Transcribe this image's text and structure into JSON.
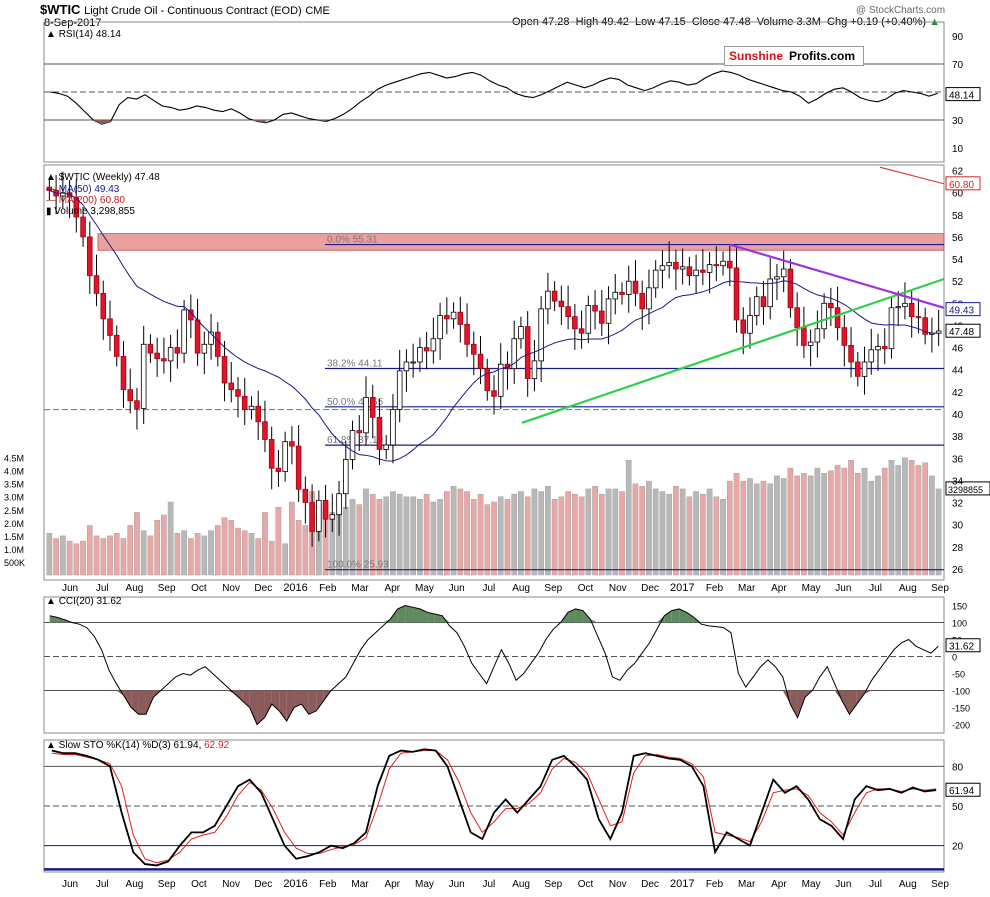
{
  "header": {
    "symbol": "$WTIC",
    "name": "Light Crude Oil - Continuous Contract (EOD)",
    "exchange": "CME",
    "date": "8-Sep-2017",
    "open": "Open 47.28",
    "high": "High 49.42",
    "low": "Low 47.15",
    "close": "Close 47.48",
    "volume": "Volume 3.3M",
    "chg": "Chg +0.19 (+0.40%)",
    "watermark": "@ StockCharts.com"
  },
  "logo": {
    "part1": "Sunshine",
    "part2": "Profits.com",
    "part1_color": "#d4141a"
  },
  "colors": {
    "rsi_fill": "#8b5a5a",
    "cci_pos_fill": "#5e8a5e",
    "cci_neg_fill": "#8b5a5a",
    "up_candle": "#ffffff",
    "down_candle": "#e0142a",
    "resistance_zone": "#e89090",
    "ma50": "#1a1a8c",
    "ma200": "#e02020",
    "green_trend": "#2bd14a",
    "purple_trend": "#a030e0",
    "fib_line": "#1a1a8c",
    "support_dash": "#2a9a6a",
    "vol_up": "#b8b8b8",
    "vol_down": "#e8a8a8",
    "sto_k": "#000000",
    "sto_d": "#e02020"
  },
  "chart_data": [
    {
      "type": "line",
      "panel": "rsi",
      "title": "RSI(14) 48.14",
      "last_value": "48.14",
      "y_ticks": [
        "90",
        "70",
        "50",
        "30",
        "10"
      ],
      "levels": [
        70,
        50,
        30
      ],
      "ylim": [
        0,
        100
      ],
      "values": [
        50,
        49,
        47,
        42,
        36,
        30,
        27,
        29,
        41,
        46,
        45,
        48,
        44,
        40,
        39,
        37,
        38,
        40,
        39,
        37,
        36,
        38,
        35,
        31,
        29,
        28,
        30,
        34,
        35,
        33,
        31,
        30,
        29,
        31,
        34,
        38,
        43,
        47,
        52,
        55,
        57,
        59,
        61,
        63,
        64,
        62,
        60,
        61,
        63,
        64,
        62,
        58,
        55,
        53,
        49,
        47,
        46,
        48,
        51,
        54,
        57,
        55,
        53,
        55,
        58,
        60,
        59,
        55,
        53,
        51,
        53,
        56,
        58,
        57,
        55,
        56,
        60,
        63,
        65,
        64,
        62,
        59,
        57,
        55,
        53,
        51,
        50,
        47,
        42,
        45,
        49,
        52,
        53,
        50,
        46,
        44,
        43,
        45,
        49,
        51,
        50,
        49,
        47,
        49
      ]
    },
    {
      "type": "candlestick",
      "panel": "price",
      "title": "$WTIC (Weekly) 47.48",
      "legend": [
        "MA(50) 49.43",
        "MA(200) 60.80",
        "Volume 3,298,855"
      ],
      "y_ticks": [
        "62",
        "60",
        "58",
        "56",
        "54",
        "52",
        "50",
        "48",
        "46",
        "44",
        "42",
        "40",
        "38",
        "36",
        "34",
        "32",
        "30",
        "28",
        "26"
      ],
      "ylim": [
        25,
        62.5
      ],
      "x_ticks": [
        "Jun",
        "Jul",
        "Aug",
        "Sep",
        "Oct",
        "Nov",
        "Dec",
        "2016",
        "Feb",
        "Mar",
        "Apr",
        "May",
        "Jun",
        "Jul",
        "Aug",
        "Sep",
        "Oct",
        "Nov",
        "Dec",
        "2017",
        "Feb",
        "Mar",
        "Apr",
        "May",
        "Jun",
        "Jul",
        "Aug",
        "Sep"
      ],
      "fib_labels": [
        "0.0% 55.31",
        "38.2% 44.11",
        "50.0% 40.65",
        "61.8% 37.19",
        "100.0% 25.93"
      ],
      "fib_levels": [
        55.31,
        44.11,
        40.65,
        37.19,
        25.93
      ],
      "support_level": 40.4,
      "resistance_zone": [
        54.8,
        56.3
      ],
      "ma50_last": "49.43",
      "ma200_last": "60.80",
      "close_last": "47.48",
      "closes": [
        60.2,
        59.7,
        60.0,
        59.6,
        57.8,
        56.0,
        52.5,
        50.9,
        48.6,
        47.1,
        45.2,
        42.2,
        41.2,
        40.5,
        46.3,
        45.5,
        45.0,
        44.8,
        46.0,
        45.5,
        49.4,
        48.5,
        45.5,
        46.3,
        47.4,
        45.2,
        42.8,
        42.2,
        41.6,
        40.4,
        40.7,
        39.3,
        37.7,
        35.1,
        34.8,
        37.5,
        37.1,
        33.2,
        32.0,
        29.4,
        32.2,
        30.5,
        30.9,
        32.8,
        35.9,
        38.5,
        38.3,
        41.5,
        39.7,
        36.8,
        37.2,
        40.4,
        43.9,
        44.7,
        44.7,
        46.0,
        45.7,
        46.8,
        48.9,
        48.6,
        49.2,
        48.1,
        46.3,
        45.4,
        44.1,
        42.1,
        41.6,
        44.5,
        44.1,
        46.8,
        47.9,
        43.2,
        44.8,
        49.5,
        51.1,
        50.2,
        49.7,
        48.8,
        47.7,
        47.3,
        49.8,
        49.3,
        48.2,
        50.4,
        51.0,
        50.8,
        52.0,
        50.9,
        49.5,
        51.4,
        53.0,
        53.4,
        53.7,
        53.1,
        53.3,
        52.5,
        53.0,
        52.8,
        53.5,
        53.4,
        53.8,
        53.2,
        48.5,
        47.3,
        48.9,
        50.6,
        49.7,
        52.2,
        52.4,
        53.1,
        49.6,
        47.8,
        46.2,
        46.5,
        47.7,
        50.0,
        49.6,
        47.8,
        46.2,
        44.7,
        43.4,
        44.7,
        45.8,
        46.1,
        45.9,
        49.6,
        49.7,
        50.0,
        48.8,
        48.7,
        47.2,
        47.3,
        47.5
      ]
    },
    {
      "type": "bar",
      "panel": "volume",
      "y_ticks": [
        "4.5M",
        "4.0M",
        "3.5M",
        "3.0M",
        "2.5M",
        "2.0M",
        "1.5M",
        "1.0M",
        "500K"
      ],
      "last_value": "3298855",
      "values": [
        1.6,
        1.4,
        1.5,
        1.3,
        1.2,
        1.3,
        1.9,
        1.5,
        1.4,
        1.5,
        1.6,
        1.4,
        1.9,
        2.4,
        1.7,
        1.5,
        2.1,
        2.3,
        2.8,
        1.6,
        1.7,
        1.4,
        1.6,
        1.5,
        1.7,
        1.9,
        2.2,
        2.1,
        1.8,
        1.7,
        1.6,
        1.4,
        2.4,
        1.3,
        2.6,
        1.2,
        2.8,
        2.1,
        1.9,
        3.2,
        2.7,
        2.5,
        2.4,
        2.3,
        2.6,
        2.9,
        2.7,
        3.3,
        3.1,
        2.9,
        3.0,
        3.2,
        3.1,
        3.0,
        3.0,
        2.9,
        3.1,
        2.8,
        2.9,
        3.2,
        3.4,
        3.3,
        3.2,
        2.9,
        3.1,
        2.7,
        2.8,
        3.0,
        2.9,
        3.1,
        3.2,
        3.0,
        3.3,
        3.2,
        3.4,
        2.9,
        3.0,
        3.2,
        3.1,
        3.0,
        3.3,
        3.4,
        3.1,
        3.3,
        3.3,
        3.2,
        4.4,
        3.5,
        3.4,
        3.6,
        3.3,
        3.2,
        3.1,
        3.4,
        3.3,
        3.0,
        3.2,
        3.1,
        3.3,
        3.0,
        2.9,
        3.6,
        3.9,
        3.6,
        3.7,
        3.5,
        3.6,
        3.5,
        3.8,
        3.7,
        4.1,
        3.8,
        3.9,
        3.8,
        4.1,
        3.9,
        4.0,
        4.2,
        4.1,
        4.4,
        3.9,
        4.1,
        3.6,
        3.8,
        4.1,
        4.4,
        4.2,
        4.5,
        4.4,
        4.2,
        4.3,
        3.8,
        3.3
      ]
    },
    {
      "type": "area",
      "panel": "cci",
      "title": "CCI(20) 31.62",
      "last_value": "31.62",
      "y_ticks": [
        "150",
        "100",
        "50",
        "0",
        "-50",
        "-100",
        "-150",
        "-200"
      ],
      "levels": [
        100,
        0,
        -100
      ],
      "ylim": [
        -225,
        175
      ],
      "values": [
        120,
        115,
        108,
        100,
        95,
        85,
        60,
        20,
        -40,
        -80,
        -115,
        -150,
        -170,
        -170,
        -120,
        -100,
        -80,
        -60,
        -50,
        -55,
        -40,
        -30,
        -50,
        -70,
        -90,
        -110,
        -130,
        -150,
        -200,
        -180,
        -140,
        -160,
        -190,
        -150,
        -140,
        -170,
        -160,
        -130,
        -100,
        -80,
        -60,
        -20,
        20,
        50,
        70,
        90,
        110,
        140,
        150,
        145,
        140,
        130,
        125,
        120,
        90,
        70,
        30,
        -20,
        -50,
        -80,
        -30,
        20,
        -20,
        -70,
        -50,
        -20,
        10,
        50,
        80,
        100,
        130,
        140,
        135,
        110,
        60,
        10,
        -60,
        -70,
        -40,
        -20,
        10,
        40,
        80,
        120,
        135,
        140,
        130,
        115,
        95,
        90,
        88,
        85,
        70,
        -50,
        -90,
        -60,
        -30,
        -10,
        -30,
        -60,
        -140,
        -180,
        -120,
        -100,
        -60,
        -30,
        -80,
        -130,
        -170,
        -140,
        -110,
        -70,
        -40,
        -10,
        20,
        40,
        50,
        30,
        20,
        10,
        30
      ]
    },
    {
      "type": "line",
      "panel": "stochastic",
      "title": "Slow STO %K(14) %D(3) 61.94, 62.92",
      "series": [
        {
          "name": "%K(14)",
          "last_value": "61.94",
          "values": [
            92,
            90,
            90,
            88,
            85,
            80,
            45,
            15,
            6,
            5,
            8,
            20,
            30,
            30,
            35,
            50,
            65,
            70,
            60,
            40,
            20,
            10,
            12,
            15,
            20,
            18,
            22,
            30,
            65,
            88,
            92,
            91,
            93,
            92,
            80,
            55,
            30,
            25,
            45,
            55,
            45,
            55,
            65,
            85,
            88,
            80,
            70,
            40,
            25,
            45,
            88,
            90,
            88,
            86,
            85,
            80,
            65,
            15,
            30,
            25,
            20,
            45,
            70,
            60,
            65,
            55,
            40,
            35,
            25,
            55,
            65,
            62,
            63,
            60,
            64,
            61,
            62
          ]
        },
        {
          "name": "%D(3)",
          "last_value": "62.92",
          "values": [
            90,
            89,
            89,
            87,
            85,
            82,
            65,
            28,
            10,
            7,
            9,
            15,
            25,
            28,
            30,
            42,
            58,
            68,
            62,
            48,
            30,
            18,
            14,
            14,
            17,
            19,
            21,
            26,
            50,
            78,
            90,
            91,
            92,
            92,
            85,
            68,
            45,
            30,
            38,
            48,
            48,
            52,
            60,
            78,
            86,
            83,
            75,
            55,
            35,
            38,
            75,
            88,
            89,
            87,
            86,
            82,
            72,
            30,
            28,
            26,
            23,
            38,
            60,
            62,
            63,
            58,
            45,
            38,
            28,
            45,
            60,
            63,
            63,
            61,
            63,
            62,
            63
          ]
        }
      ],
      "y_ticks": [
        "80",
        "50",
        "20"
      ],
      "levels": [
        80,
        50,
        20
      ],
      "ylim": [
        0,
        100
      ]
    }
  ]
}
